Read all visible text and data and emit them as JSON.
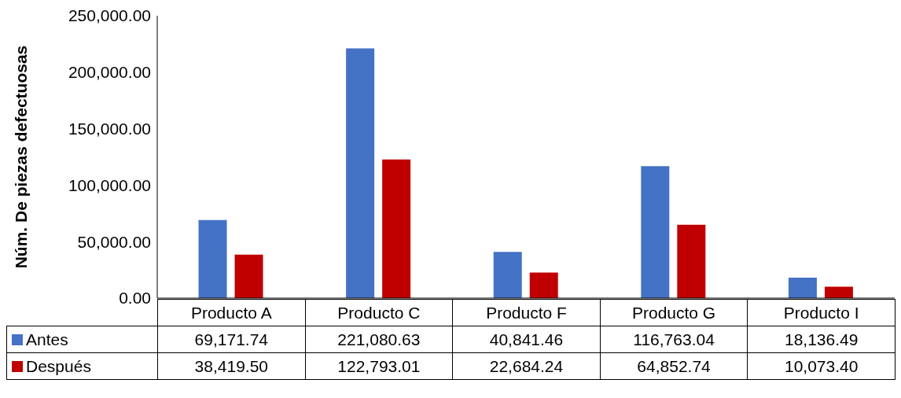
{
  "chart_data": {
    "type": "bar",
    "ylabel": "Núm. De piezas defectuosas",
    "categories": [
      "Producto A",
      "Producto C",
      "Producto F",
      "Producto G",
      "Producto I"
    ],
    "series": [
      {
        "name": "Antes",
        "color": "#4472c4",
        "values": [
          69171.74,
          221080.63,
          40841.46,
          116763.04,
          18136.49
        ],
        "value_labels": [
          "69,171.74",
          "221,080.63",
          "40,841.46",
          "116,763.04",
          "18,136.49"
        ]
      },
      {
        "name": "Después",
        "color": "#c00000",
        "values": [
          38419.5,
          122793.01,
          22684.24,
          64852.74,
          10073.4
        ],
        "value_labels": [
          "38,419.50",
          "122,793.01",
          "22,684.24",
          "64,852.74",
          "10,073.40"
        ]
      }
    ],
    "ylim": [
      0,
      250000
    ],
    "yticks": [
      {
        "value": 0,
        "label": "0.00"
      },
      {
        "value": 50000,
        "label": "50,000.00"
      },
      {
        "value": 100000,
        "label": "100,000.00"
      },
      {
        "value": 150000,
        "label": "150,000.00"
      },
      {
        "value": 200000,
        "label": "200,000.00"
      },
      {
        "value": 250000,
        "label": "250,000.00"
      }
    ],
    "grid": false,
    "legend": "bottom"
  }
}
